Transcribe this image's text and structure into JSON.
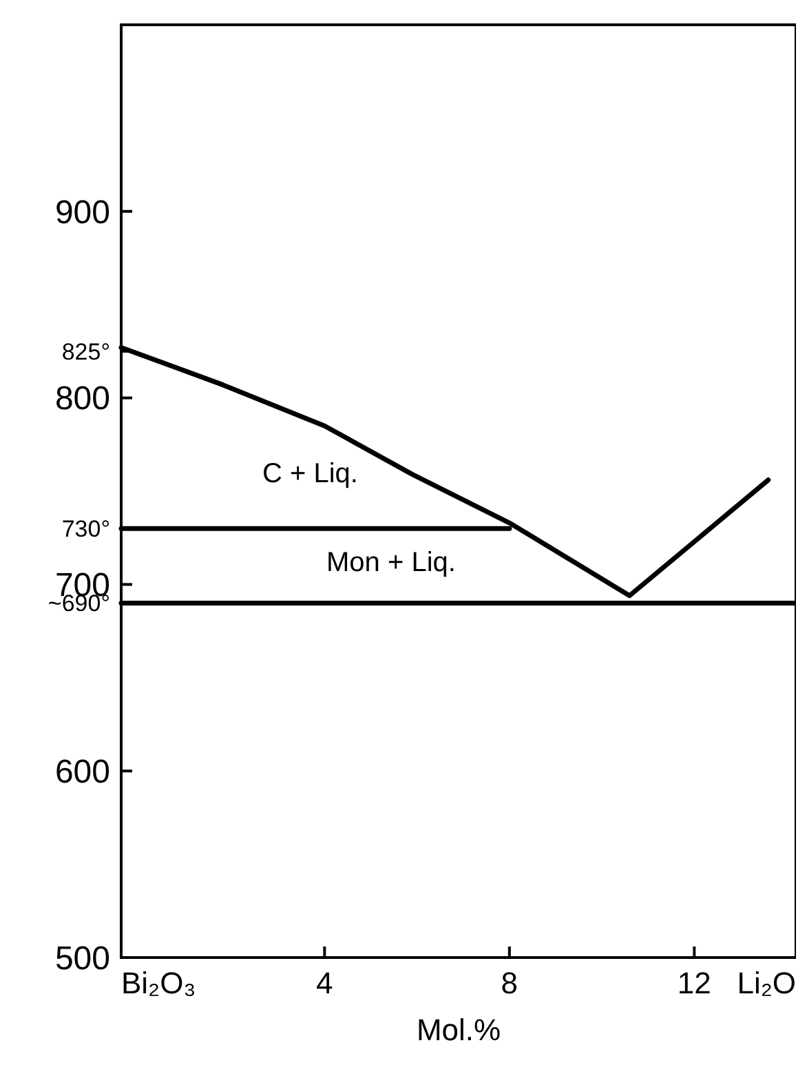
{
  "chart_data": {
    "type": "line",
    "xlabel": "Mol.%",
    "xlim": [
      -0.4,
      14.2
    ],
    "xticks": [
      {
        "value": -0.4,
        "label": "Bi₂O₃"
      },
      4,
      8,
      12,
      {
        "value": 14.2,
        "label": "Li₂O"
      }
    ],
    "ylim": [
      500,
      1000
    ],
    "yticks": [
      500,
      600,
      700,
      {
        "value": 690,
        "label": "~690°"
      },
      {
        "value": 730,
        "label": "730°"
      },
      800,
      {
        "value": 825,
        "label": "825°"
      },
      900
    ],
    "series": [
      {
        "color": "#000000",
        "x": [
          -0.4,
          1.8,
          4,
          5.9,
          8,
          10.6,
          13.6
        ],
        "values": [
          827,
          807,
          785,
          759,
          733,
          694,
          756
        ]
      },
      {
        "color": "#000000",
        "x": [
          -0.4,
          8
        ],
        "values": [
          730,
          730
        ]
      },
      {
        "color": "#000000",
        "x": [
          -0.4,
          14.2
        ],
        "values": [
          690,
          690
        ]
      }
    ],
    "annotations": [
      "C + Liq.",
      "Mon + Liq."
    ],
    "line_style": "solid"
  }
}
